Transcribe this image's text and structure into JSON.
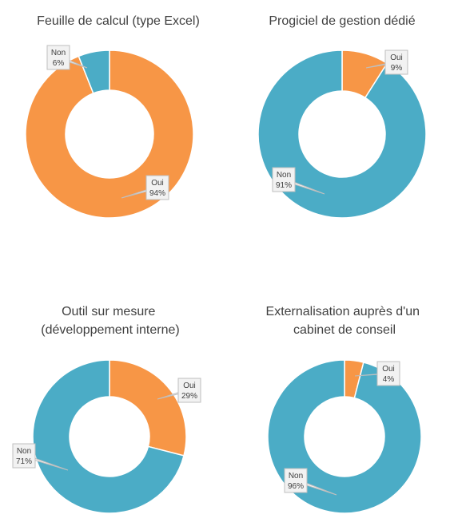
{
  "colors": {
    "oui": "#F79646",
    "non": "#4BACC6"
  },
  "chart_data": [
    {
      "type": "pie",
      "title": [
        "Feuille de calcul (type Excel)"
      ],
      "slices": [
        {
          "name": "Oui",
          "value": 94,
          "label": "94%"
        },
        {
          "name": "Non",
          "value": 6,
          "label": "6%"
        }
      ]
    },
    {
      "type": "pie",
      "title": [
        "Progiciel de gestion dédié"
      ],
      "slices": [
        {
          "name": "Oui",
          "value": 9,
          "label": "9%"
        },
        {
          "name": "Non",
          "value": 91,
          "label": "91%"
        }
      ]
    },
    {
      "type": "pie",
      "title": [
        "Outil sur mesure",
        "(développement interne)"
      ],
      "slices": [
        {
          "name": "Oui",
          "value": 29,
          "label": "29%"
        },
        {
          "name": "Non",
          "value": 71,
          "label": "71%"
        }
      ]
    },
    {
      "type": "pie",
      "title": [
        "Externalisation auprès d'un",
        "cabinet de conseil"
      ],
      "slices": [
        {
          "name": "Oui",
          "value": 4,
          "label": "4%"
        },
        {
          "name": "Non",
          "value": 96,
          "label": "96%"
        }
      ]
    }
  ]
}
